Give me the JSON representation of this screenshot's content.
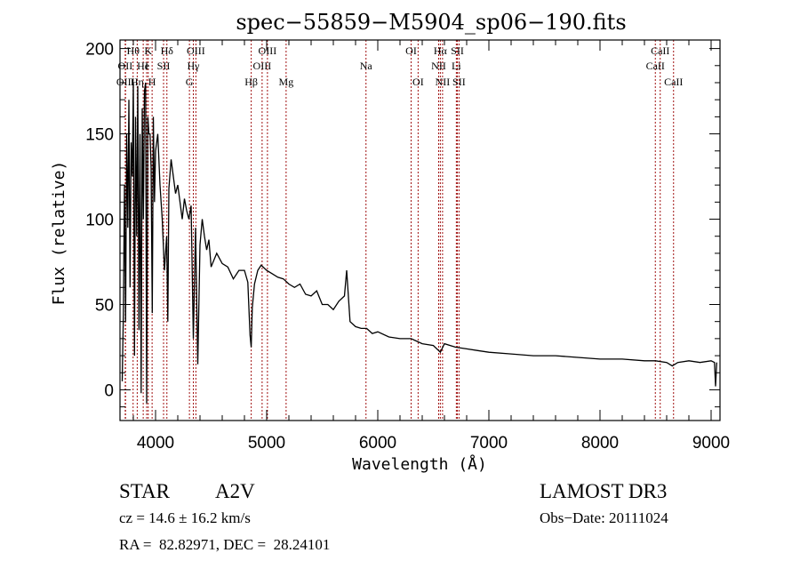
{
  "chart_data": {
    "type": "line",
    "title": "spec−55859−M5904_sp06−190.fits",
    "xlabel": "Wavelength (Å)",
    "ylabel": "Flux (relative)",
    "xlim": [
      3680,
      9080
    ],
    "ylim": [
      -18,
      205
    ],
    "xticks": [
      4000,
      5000,
      6000,
      7000,
      8000,
      9000
    ],
    "yticks": [
      0,
      50,
      100,
      150,
      200
    ],
    "xminor_step": 200,
    "yminor_step": 10,
    "grid": false,
    "series": [
      {
        "name": "spectrum",
        "color": "#000000",
        "x": [
          3700,
          3710,
          3720,
          3730,
          3740,
          3750,
          3760,
          3770,
          3780,
          3790,
          3800,
          3810,
          3820,
          3830,
          3840,
          3850,
          3860,
          3870,
          3880,
          3890,
          3900,
          3910,
          3920,
          3930,
          3940,
          3950,
          3960,
          3970,
          3980,
          3990,
          4000,
          4020,
          4040,
          4060,
          4080,
          4100,
          4110,
          4120,
          4140,
          4160,
          4180,
          4200,
          4220,
          4240,
          4260,
          4280,
          4300,
          4320,
          4340,
          4360,
          4380,
          4400,
          4420,
          4440,
          4460,
          4480,
          4500,
          4550,
          4600,
          4650,
          4700,
          4750,
          4800,
          4830,
          4850,
          4861,
          4870,
          4890,
          4920,
          4950,
          5000,
          5050,
          5100,
          5150,
          5200,
          5250,
          5300,
          5350,
          5400,
          5450,
          5500,
          5550,
          5600,
          5650,
          5700,
          5720,
          5750,
          5800,
          5850,
          5900,
          5950,
          6000,
          6100,
          6200,
          6300,
          6400,
          6500,
          6563,
          6600,
          6700,
          6800,
          6900,
          7000,
          7200,
          7400,
          7600,
          7800,
          8000,
          8200,
          8400,
          8500,
          8600,
          8650,
          8700,
          8800,
          8900,
          9000,
          9030,
          9040,
          9050
        ],
        "y": [
          5,
          45,
          120,
          40,
          150,
          95,
          170,
          60,
          145,
          125,
          180,
          20,
          160,
          90,
          178,
          35,
          150,
          -2,
          165,
          100,
          175,
          180,
          -8,
          160,
          150,
          150,
          130,
          45,
          160,
          110,
          140,
          150,
          120,
          100,
          70,
          90,
          40,
          118,
          135,
          125,
          115,
          120,
          110,
          100,
          112,
          105,
          100,
          108,
          30,
          95,
          15,
          85,
          100,
          90,
          82,
          88,
          72,
          80,
          74,
          72,
          65,
          70,
          70,
          63,
          32,
          25,
          48,
          62,
          70,
          73,
          70,
          68,
          66,
          65,
          62,
          60,
          62,
          56,
          55,
          58,
          50,
          50,
          47,
          52,
          55,
          70,
          40,
          37,
          36,
          36,
          33,
          34,
          31,
          30,
          30,
          27,
          26,
          22,
          27,
          25,
          24,
          23,
          22,
          21,
          20,
          20,
          19,
          18,
          18,
          17,
          17,
          16,
          14,
          16,
          17,
          16,
          17,
          16,
          2,
          16
        ]
      }
    ],
    "emission_lines": [
      {
        "label": "Hθ",
        "wavelength": 3798,
        "row": 1
      },
      {
        "label": "OII",
        "wavelength": 3727,
        "row": 2
      },
      {
        "label": "OIII",
        "wavelength": 3730,
        "row": 3
      },
      {
        "label": "He",
        "wavelength": 3889,
        "row": 2
      },
      {
        "label": "Hη",
        "wavelength": 3835,
        "row": 3
      },
      {
        "label": "K",
        "wavelength": 3934,
        "row": 1
      },
      {
        "label": "I",
        "wavelength": 3920,
        "row": 2
      },
      {
        "label": "H",
        "wavelength": 3969,
        "row": 3
      },
      {
        "label": "SII",
        "wavelength": 4072,
        "row": 2
      },
      {
        "label": "Hδ",
        "wavelength": 4102,
        "row": 1
      },
      {
        "label": "OIII",
        "wavelength": 4363,
        "row": 1
      },
      {
        "label": "Hγ",
        "wavelength": 4340,
        "row": 2
      },
      {
        "label": "G",
        "wavelength": 4305,
        "row": 3
      },
      {
        "label": "Hβ",
        "wavelength": 4861,
        "row": 3
      },
      {
        "label": "OIII",
        "wavelength": 5007,
        "row": 1
      },
      {
        "label": "OIII",
        "wavelength": 4959,
        "row": 2
      },
      {
        "label": "Mg",
        "wavelength": 5175,
        "row": 3
      },
      {
        "label": "Na",
        "wavelength": 5894,
        "row": 2
      },
      {
        "label": "OI",
        "wavelength": 6300,
        "row": 1
      },
      {
        "label": "OI",
        "wavelength": 6363,
        "row": 3
      },
      {
        "label": "Hα",
        "wavelength": 6563,
        "row": 1
      },
      {
        "label": "NII",
        "wavelength": 6548,
        "row": 2
      },
      {
        "label": "NII",
        "wavelength": 6583,
        "row": 3
      },
      {
        "label": "SII",
        "wavelength": 6716,
        "row": 1
      },
      {
        "label": "Li",
        "wavelength": 6707,
        "row": 2
      },
      {
        "label": "SII",
        "wavelength": 6731,
        "row": 3
      },
      {
        "label": "CaII",
        "wavelength": 8542,
        "row": 1
      },
      {
        "label": "CaII",
        "wavelength": 8498,
        "row": 2
      },
      {
        "label": "CaII",
        "wavelength": 8662,
        "row": 3
      }
    ],
    "line_color": "#a01010"
  },
  "info": {
    "object_class": "STAR",
    "subclass": "A2V",
    "survey": "LAMOST DR3",
    "redshift": "cz = 14.6 ± 16.2 km/s",
    "obs_date": "Obs−Date: 20111024",
    "coords": "RA =  82.82971, DEC =  28.24101"
  }
}
